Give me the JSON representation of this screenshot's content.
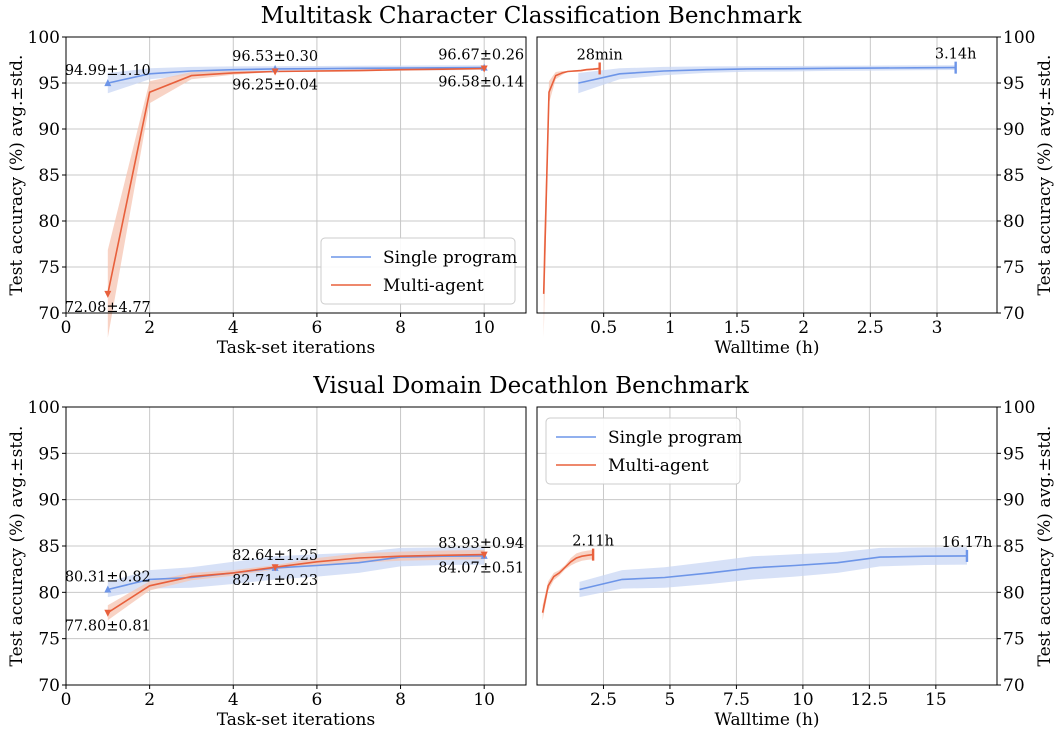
{
  "figure": {
    "titles": [
      "Multitask Character Classification Benchmark",
      "Visual Domain Decathlon Benchmark"
    ],
    "colors": {
      "single": "#6d95e8",
      "multi": "#e8603c",
      "single_band": "#c9d7f4",
      "multi_band": "#f5c4b2",
      "grid": "#c8c8c8"
    }
  },
  "chart_data": [
    {
      "type": "line",
      "title": "Multitask Character Classification Benchmark",
      "xlabel": "Task-set iterations",
      "ylabel": "Test accuracy (%) avg.±std.",
      "xlim": [
        0,
        11
      ],
      "ylim": [
        70,
        100
      ],
      "xticks": [
        0,
        2,
        4,
        6,
        8,
        10
      ],
      "xtick_labels": [
        "0",
        "2",
        "4",
        "6",
        "8",
        "10"
      ],
      "yticks": [
        70,
        75,
        80,
        85,
        90,
        95,
        100
      ],
      "ytick_labels": [
        "70",
        "75",
        "80",
        "85",
        "90",
        "95",
        "100"
      ],
      "grid": true,
      "legend": {
        "position": "lower-right",
        "entries": [
          "Single program",
          "Multi-agent"
        ]
      },
      "series": [
        {
          "name": "Single program",
          "color": "#6d95e8",
          "x": [
            1,
            2,
            3,
            4,
            5,
            6,
            7,
            8,
            9,
            10
          ],
          "y": [
            94.99,
            96.0,
            96.3,
            96.45,
            96.53,
            96.55,
            96.6,
            96.62,
            96.65,
            96.67
          ],
          "std": [
            1.1,
            0.6,
            0.45,
            0.35,
            0.3,
            0.3,
            0.28,
            0.27,
            0.26,
            0.26
          ]
        },
        {
          "name": "Multi-agent",
          "color": "#e8603c",
          "x": [
            1,
            2,
            3,
            4,
            5,
            6,
            7,
            8,
            9,
            10
          ],
          "y": [
            72.08,
            94.0,
            95.8,
            96.1,
            96.25,
            96.3,
            96.35,
            96.45,
            96.5,
            96.58
          ],
          "std": [
            4.77,
            1.2,
            0.4,
            0.2,
            0.04,
            0.1,
            0.1,
            0.1,
            0.1,
            0.14
          ]
        }
      ],
      "annotations": [
        {
          "text": "94.99±1.10",
          "x": 1,
          "y": 94.99,
          "marker": "up",
          "series": 0,
          "place": "above"
        },
        {
          "text": "96.53±0.30",
          "x": 5,
          "y": 96.53,
          "marker": "up",
          "series": 0,
          "place": "above"
        },
        {
          "text": "96.67±0.26",
          "x": 10,
          "y": 96.67,
          "marker": "up",
          "series": 0,
          "place": "above"
        },
        {
          "text": "72.08±4.77",
          "x": 1,
          "y": 72.08,
          "marker": "down",
          "series": 1,
          "place": "below"
        },
        {
          "text": "96.25±0.04",
          "x": 5,
          "y": 96.25,
          "marker": "down",
          "series": 1,
          "place": "below"
        },
        {
          "text": "96.58±0.14",
          "x": 10,
          "y": 96.58,
          "marker": "down",
          "series": 1,
          "place": "below"
        }
      ]
    },
    {
      "type": "line",
      "xlabel": "Walltime (h)",
      "ylabel": "Test accuracy (%) avg.±std.",
      "xlim": [
        0.0,
        3.45
      ],
      "ylim": [
        70,
        100
      ],
      "xticks": [
        0.5,
        1,
        1.5,
        2,
        2.5,
        3
      ],
      "xtick_labels": [
        "0.5",
        "1",
        "1.5",
        "2",
        "2.5",
        "3"
      ],
      "yticks": [
        70,
        75,
        80,
        85,
        90,
        95,
        100
      ],
      "ytick_labels": [
        "70",
        "75",
        "80",
        "85",
        "90",
        "95",
        "100"
      ],
      "grid": true,
      "series": [
        {
          "name": "Single program",
          "color": "#6d95e8",
          "x": [
            0.31,
            0.62,
            0.95,
            1.27,
            1.58,
            1.9,
            2.21,
            2.53,
            2.84,
            3.14
          ],
          "y": [
            94.99,
            96.0,
            96.3,
            96.45,
            96.53,
            96.55,
            96.6,
            96.62,
            96.65,
            96.67
          ],
          "std": [
            1.1,
            0.6,
            0.45,
            0.35,
            0.3,
            0.3,
            0.28,
            0.27,
            0.26,
            0.26
          ]
        },
        {
          "name": "Multi-agent",
          "color": "#e8603c",
          "x": [
            0.05,
            0.09,
            0.14,
            0.19,
            0.23,
            0.28,
            0.33,
            0.37,
            0.42,
            0.47
          ],
          "y": [
            72.08,
            94.0,
            95.8,
            96.1,
            96.25,
            96.3,
            96.35,
            96.45,
            96.5,
            96.58
          ],
          "std": [
            4.77,
            1.2,
            0.4,
            0.2,
            0.04,
            0.1,
            0.1,
            0.1,
            0.1,
            0.14
          ]
        }
      ],
      "end_labels": [
        {
          "text": "28min",
          "x": 0.47,
          "y": 96.58,
          "series": 1
        },
        {
          "text": "3.14h",
          "x": 3.14,
          "y": 96.67,
          "series": 0
        }
      ]
    },
    {
      "type": "line",
      "title": "Visual Domain Decathlon Benchmark",
      "xlabel": "Task-set iterations",
      "ylabel": "Test accuracy (%) avg.±std.",
      "xlim": [
        0,
        11
      ],
      "ylim": [
        70,
        100
      ],
      "xticks": [
        0,
        2,
        4,
        6,
        8,
        10
      ],
      "xtick_labels": [
        "0",
        "2",
        "4",
        "6",
        "8",
        "10"
      ],
      "yticks": [
        70,
        75,
        80,
        85,
        90,
        95,
        100
      ],
      "ytick_labels": [
        "70",
        "75",
        "80",
        "85",
        "90",
        "95",
        "100"
      ],
      "grid": true,
      "series": [
        {
          "name": "Single program",
          "color": "#6d95e8",
          "x": [
            1,
            2,
            3,
            4,
            5,
            6,
            7,
            8,
            9,
            10
          ],
          "y": [
            80.31,
            81.4,
            81.6,
            82.1,
            82.64,
            82.9,
            83.2,
            83.8,
            83.9,
            83.93
          ],
          "std": [
            0.82,
            1.0,
            1.1,
            1.2,
            1.25,
            1.2,
            1.1,
            1.0,
            0.95,
            0.94
          ]
        },
        {
          "name": "Multi-agent",
          "color": "#e8603c",
          "x": [
            1,
            2,
            3,
            4,
            5,
            6,
            7,
            8,
            9,
            10
          ],
          "y": [
            77.8,
            80.7,
            81.7,
            82.1,
            82.71,
            83.3,
            83.7,
            83.9,
            84.0,
            84.07
          ],
          "std": [
            0.81,
            0.5,
            0.4,
            0.3,
            0.23,
            0.4,
            0.5,
            0.5,
            0.5,
            0.51
          ]
        }
      ],
      "annotations": [
        {
          "text": "80.31±0.82",
          "x": 1,
          "y": 80.31,
          "marker": "up",
          "series": 0,
          "place": "above"
        },
        {
          "text": "82.64±1.25",
          "x": 5,
          "y": 82.64,
          "marker": "up",
          "series": 0,
          "place": "above"
        },
        {
          "text": "83.93±0.94",
          "x": 10,
          "y": 83.93,
          "marker": "up",
          "series": 0,
          "place": "above"
        },
        {
          "text": "77.80±0.81",
          "x": 1,
          "y": 77.8,
          "marker": "down",
          "series": 1,
          "place": "below"
        },
        {
          "text": "82.71±0.23",
          "x": 5,
          "y": 82.71,
          "marker": "down",
          "series": 1,
          "place": "below"
        },
        {
          "text": "84.07±0.51",
          "x": 10,
          "y": 84.07,
          "marker": "down",
          "series": 1,
          "place": "below"
        }
      ]
    },
    {
      "type": "line",
      "xlabel": "Walltime (h)",
      "ylabel": "Test accuracy (%) avg.±std.",
      "xlim": [
        0.0,
        17.3
      ],
      "ylim": [
        70,
        100
      ],
      "xticks": [
        2.5,
        5,
        7.5,
        10,
        12.5,
        15
      ],
      "xtick_labels": [
        "2.5",
        "5",
        "7.5",
        "10",
        "12.5",
        "15"
      ],
      "yticks": [
        70,
        75,
        80,
        85,
        90,
        95,
        100
      ],
      "ytick_labels": [
        "70",
        "75",
        "80",
        "85",
        "90",
        "95",
        "100"
      ],
      "grid": true,
      "legend": {
        "position": "upper-left",
        "entries": [
          "Single program",
          "Multi-agent"
        ]
      },
      "series": [
        {
          "name": "Single program",
          "color": "#6d95e8",
          "x": [
            1.6,
            3.2,
            4.8,
            6.5,
            8.1,
            9.7,
            11.3,
            12.9,
            14.6,
            16.17
          ],
          "y": [
            80.31,
            81.4,
            81.6,
            82.1,
            82.64,
            82.9,
            83.2,
            83.8,
            83.9,
            83.93
          ],
          "std": [
            0.82,
            1.0,
            1.1,
            1.2,
            1.25,
            1.2,
            1.1,
            1.0,
            0.95,
            0.94
          ]
        },
        {
          "name": "Multi-agent",
          "color": "#e8603c",
          "x": [
            0.21,
            0.42,
            0.63,
            0.84,
            1.06,
            1.27,
            1.48,
            1.69,
            1.9,
            2.11
          ],
          "y": [
            77.8,
            80.7,
            81.7,
            82.1,
            82.71,
            83.3,
            83.7,
            83.9,
            84.0,
            84.07
          ],
          "std": [
            0.81,
            0.5,
            0.4,
            0.3,
            0.23,
            0.4,
            0.5,
            0.5,
            0.5,
            0.51
          ]
        }
      ],
      "end_labels": [
        {
          "text": "2.11h",
          "x": 2.11,
          "y": 84.07,
          "series": 1
        },
        {
          "text": "16.17h",
          "x": 16.17,
          "y": 83.93,
          "series": 0
        }
      ]
    }
  ]
}
